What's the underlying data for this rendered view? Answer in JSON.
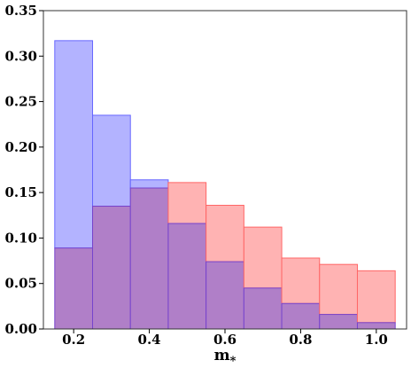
{
  "chart_data": {
    "type": "bar",
    "title": "",
    "xlabel": "m",
    "xlabel_subscript": "*",
    "ylabel": "",
    "xlim": [
      0.12,
      1.08
    ],
    "ylim": [
      0.0,
      0.35
    ],
    "xticks": [
      0.2,
      0.4,
      0.6,
      0.8,
      1.0
    ],
    "xtick_labels": [
      "0.2",
      "0.4",
      "0.6",
      "0.8",
      "1.0"
    ],
    "yticks": [
      0.0,
      0.05,
      0.1,
      0.15,
      0.2,
      0.25,
      0.3,
      0.35
    ],
    "ytick_labels": [
      "0.00",
      "0.05",
      "0.10",
      "0.15",
      "0.20",
      "0.25",
      "0.30",
      "0.35"
    ],
    "grid": false,
    "legend": "none",
    "bin_edges": [
      0.15,
      0.25,
      0.35,
      0.45,
      0.55,
      0.65,
      0.75,
      0.85,
      0.95,
      1.05
    ],
    "series": [
      {
        "color_fill": "#ffb3b3",
        "color_edge": "#ff6666",
        "values": [
          0.089,
          0.135,
          0.155,
          0.161,
          0.136,
          0.112,
          0.078,
          0.071,
          0.064
        ]
      },
      {
        "color_fill": "#b3b3ff",
        "color_edge": "#6666ff",
        "values": [
          0.317,
          0.235,
          0.164,
          0.116,
          0.074,
          0.045,
          0.028,
          0.016,
          0.007
        ]
      }
    ],
    "overlap_fill": "#b07fc8",
    "overlap_edge": "#7744cc"
  }
}
